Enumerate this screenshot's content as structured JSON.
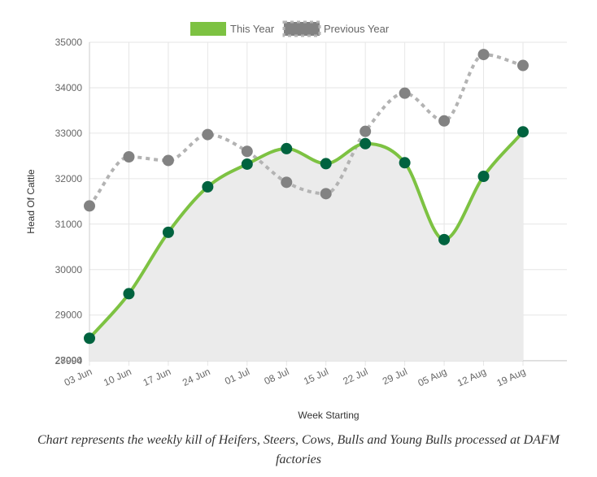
{
  "chart_data": {
    "type": "line",
    "title": "",
    "xlabel": "Week Starting",
    "ylabel": "Head Of Cattle",
    "categories": [
      "03 Jun",
      "10 Jun",
      "17 Jun",
      "24 Jun",
      "01 Jul",
      "08 Jul",
      "15 Jul",
      "22 Jul",
      "29 Jul",
      "05 Aug",
      "12 Aug",
      "19 Aug"
    ],
    "ylim": [
      27994,
      35000
    ],
    "yticks": [
      "35000",
      "34000",
      "33000",
      "32000",
      "31000",
      "30000",
      "29000",
      "28000",
      "27994"
    ],
    "legend_position": "top",
    "grid": true,
    "series": [
      {
        "name": "This Year",
        "color": "#7dc242",
        "point_color": "#00633f",
        "fill": "#ebebeb",
        "style": "solid",
        "values": [
          28490,
          29470,
          30820,
          31820,
          32320,
          32660,
          32330,
          32770,
          32350,
          30660,
          32050,
          33030
        ]
      },
      {
        "name": "Previous Year",
        "color": "#b3b3b3",
        "point_color": "#828282",
        "style": "dashed",
        "values": [
          31400,
          32480,
          32400,
          32970,
          32600,
          31920,
          31670,
          33040,
          33880,
          33270,
          34730,
          34490
        ]
      }
    ]
  },
  "caption": "Chart represents the weekly kill of Heifers, Steers, Cows, Bulls and Young Bulls processed at DAFM factories"
}
